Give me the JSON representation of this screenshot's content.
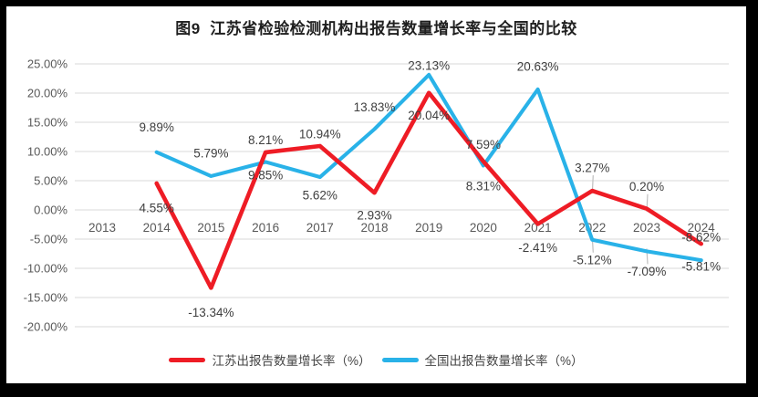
{
  "frame": {
    "border_color": "#000000",
    "panel_color": "#ffffff"
  },
  "chart_data": {
    "type": "line",
    "title": "图9  江苏省检验检测机构出报告数量增长率与全国的比较",
    "categories": [
      "2013",
      "2014",
      "2015",
      "2016",
      "2017",
      "2018",
      "2019",
      "2020",
      "2021",
      "2022",
      "2023",
      "2024"
    ],
    "series": [
      {
        "name": "江苏出报告数量增长率（%）",
        "color": "#ee1c25",
        "values": [
          null,
          4.55,
          -13.34,
          9.85,
          10.94,
          2.93,
          20.04,
          8.31,
          -2.41,
          3.27,
          0.2,
          -5.81
        ],
        "labels": [
          "",
          "4.55%",
          "-13.34%",
          "9.85%",
          "10.94%",
          "2.93%",
          "20.04%",
          "8.31%",
          "-2.41%",
          "3.27%",
          "0.20%",
          "-5.81%"
        ],
        "label_dy": [
          0,
          27,
          27,
          25,
          -13,
          25,
          25,
          27,
          26,
          -25,
          -24,
          25
        ],
        "leader_idx": [
          9,
          10
        ]
      },
      {
        "name": "全国出报告数量增长率（%）",
        "color": "#29b2e8",
        "values": [
          null,
          9.89,
          5.79,
          8.21,
          5.62,
          13.83,
          23.13,
          7.59,
          20.63,
          -5.12,
          -7.09,
          -8.62
        ],
        "labels": [
          "",
          "9.89%",
          "5.79%",
          "8.21%",
          "5.62%",
          "13.83%",
          "23.13%",
          "7.59%",
          "20.63%",
          "-5.12%",
          "-7.09%",
          "-8.62%"
        ],
        "label_dy": [
          0,
          -27,
          -25,
          -24,
          20,
          -24,
          -10,
          -23,
          -25,
          22,
          22,
          -25
        ],
        "leader_idx": [
          9,
          10
        ]
      }
    ],
    "ylim": [
      -20,
      25
    ],
    "ytick_step": 5,
    "ytick_labels": [
      "25.00%",
      "20.00%",
      "15.00%",
      "10.00%",
      "5.00%",
      "0.00%",
      "-5.00%",
      "-10.00%",
      "-15.00%",
      "-20.00%"
    ],
    "grid": true,
    "gridline_color": "#d9d9d9",
    "axis_text_color": "#595959",
    "data_label_color": "#3f3f3f",
    "leader_line_color": "#bfbfbf",
    "legend_position": "bottom"
  }
}
